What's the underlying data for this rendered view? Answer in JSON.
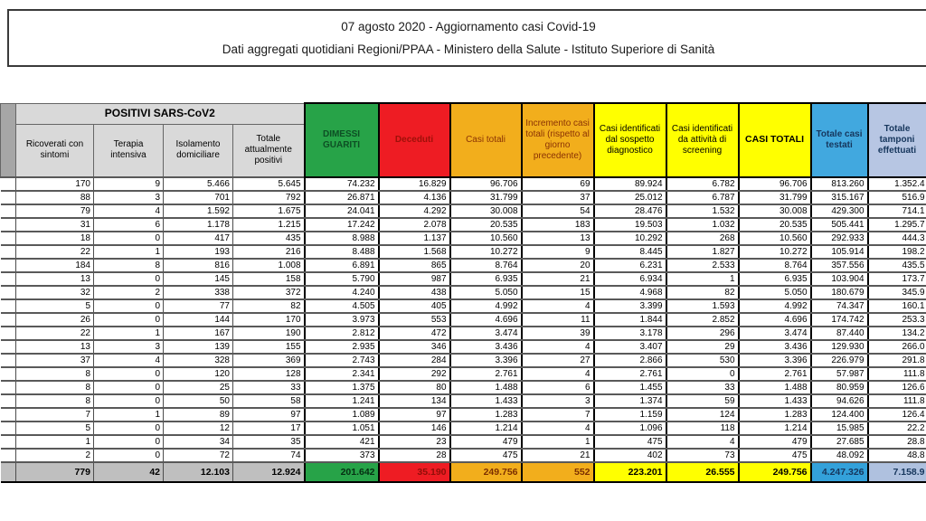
{
  "info_box": {
    "line1": "07 agosto 2020 - Aggiornamento casi Covid-19",
    "line2": "Dati aggregati quotidiani Regioni/PPAA - Ministero della Salute - Istituto Superiore di Sanità"
  },
  "colors": {
    "dimessi_guariti_bg": "#27a348",
    "deceduti_bg": "#ee1c23",
    "casi_totali_bg": "#f2ae1c",
    "casi_totali_caps_bg": "#ffff00",
    "totale_casi_testati_bg": "#41a8df",
    "totale_tamponi_bg": "#b7c6e3",
    "header_gray": "#d9d9d9",
    "corner_gray": "#a6a6a6",
    "total_row_gray": "#bfbfbf"
  },
  "table": {
    "group_header": "POSITIVI SARS-CoV2",
    "columns": {
      "region": "",
      "ricoverati": "Ricoverati con sintomi",
      "terapia": "Terapia intensiva",
      "isolamento": "Isolamento domiciliare",
      "totale_positivi": "Totale attualmente positivi",
      "dimessi": "DIMESSI GUARITI",
      "deceduti": "Deceduti",
      "casi_totali": "Casi totali",
      "incremento": "Incremento casi totali (rispetto al giorno precedente)",
      "sospetto": "Casi identificati dal sospetto diagnostico",
      "screening": "Casi identificati da attività di screening",
      "casi_totali_caps": "CASI TOTALI",
      "testati": "Totale casi testati",
      "tamponi": "Totale tamponi effettuati"
    },
    "rows": [
      [
        "",
        "170",
        "9",
        "5.466",
        "5.645",
        "74.232",
        "16.829",
        "96.706",
        "69",
        "89.924",
        "6.782",
        "96.706",
        "813.260",
        "1.352.4"
      ],
      [
        "",
        "88",
        "3",
        "701",
        "792",
        "26.871",
        "4.136",
        "31.799",
        "37",
        "25.012",
        "6.787",
        "31.799",
        "315.167",
        "516.9"
      ],
      [
        "",
        "79",
        "4",
        "1.592",
        "1.675",
        "24.041",
        "4.292",
        "30.008",
        "54",
        "28.476",
        "1.532",
        "30.008",
        "429.300",
        "714.1"
      ],
      [
        "",
        "31",
        "6",
        "1.178",
        "1.215",
        "17.242",
        "2.078",
        "20.535",
        "183",
        "19.503",
        "1.032",
        "20.535",
        "505.441",
        "1.295.7"
      ],
      [
        "",
        "18",
        "0",
        "417",
        "435",
        "8.988",
        "1.137",
        "10.560",
        "13",
        "10.292",
        "268",
        "10.560",
        "292.933",
        "444.3"
      ],
      [
        "",
        "22",
        "1",
        "193",
        "216",
        "8.488",
        "1.568",
        "10.272",
        "9",
        "8.445",
        "1.827",
        "10.272",
        "105.914",
        "198.2"
      ],
      [
        "",
        "184",
        "8",
        "816",
        "1.008",
        "6.891",
        "865",
        "8.764",
        "20",
        "6.231",
        "2.533",
        "8.764",
        "357.556",
        "435.5"
      ],
      [
        "",
        "13",
        "0",
        "145",
        "158",
        "5.790",
        "987",
        "6.935",
        "21",
        "6.934",
        "1",
        "6.935",
        "103.904",
        "173.7"
      ],
      [
        "",
        "32",
        "2",
        "338",
        "372",
        "4.240",
        "438",
        "5.050",
        "15",
        "4.968",
        "82",
        "5.050",
        "180.679",
        "345.9"
      ],
      [
        "",
        "5",
        "0",
        "77",
        "82",
        "4.505",
        "405",
        "4.992",
        "4",
        "3.399",
        "1.593",
        "4.992",
        "74.347",
        "160.1"
      ],
      [
        "",
        "26",
        "0",
        "144",
        "170",
        "3.973",
        "553",
        "4.696",
        "11",
        "1.844",
        "2.852",
        "4.696",
        "174.742",
        "253.3"
      ],
      [
        "",
        "22",
        "1",
        "167",
        "190",
        "2.812",
        "472",
        "3.474",
        "39",
        "3.178",
        "296",
        "3.474",
        "87.440",
        "134.2"
      ],
      [
        "",
        "13",
        "3",
        "139",
        "155",
        "2.935",
        "346",
        "3.436",
        "4",
        "3.407",
        "29",
        "3.436",
        "129.930",
        "266.0"
      ],
      [
        "",
        "37",
        "4",
        "328",
        "369",
        "2.743",
        "284",
        "3.396",
        "27",
        "2.866",
        "530",
        "3.396",
        "226.979",
        "291.8"
      ],
      [
        "",
        "8",
        "0",
        "120",
        "128",
        "2.341",
        "292",
        "2.761",
        "4",
        "2.761",
        "0",
        "2.761",
        "57.987",
        "111.8"
      ],
      [
        "",
        "8",
        "0",
        "25",
        "33",
        "1.375",
        "80",
        "1.488",
        "6",
        "1.455",
        "33",
        "1.488",
        "80.959",
        "126.6"
      ],
      [
        "",
        "8",
        "0",
        "50",
        "58",
        "1.241",
        "134",
        "1.433",
        "3",
        "1.374",
        "59",
        "1.433",
        "94.626",
        "111.8"
      ],
      [
        "",
        "7",
        "1",
        "89",
        "97",
        "1.089",
        "97",
        "1.283",
        "7",
        "1.159",
        "124",
        "1.283",
        "124.400",
        "126.4"
      ],
      [
        "",
        "5",
        "0",
        "12",
        "17",
        "1.051",
        "146",
        "1.214",
        "4",
        "1.096",
        "118",
        "1.214",
        "15.985",
        "22.2"
      ],
      [
        "",
        "1",
        "0",
        "34",
        "35",
        "421",
        "23",
        "479",
        "1",
        "475",
        "4",
        "479",
        "27.685",
        "28.8"
      ],
      [
        "",
        "2",
        "0",
        "72",
        "74",
        "373",
        "28",
        "475",
        "21",
        "402",
        "73",
        "475",
        "48.092",
        "48.8"
      ]
    ],
    "totals": [
      "",
      "779",
      "42",
      "12.103",
      "12.924",
      "201.642",
      "35.190",
      "249.756",
      "552",
      "223.201",
      "26.555",
      "249.756",
      "4.247.326",
      "7.158.9"
    ]
  }
}
